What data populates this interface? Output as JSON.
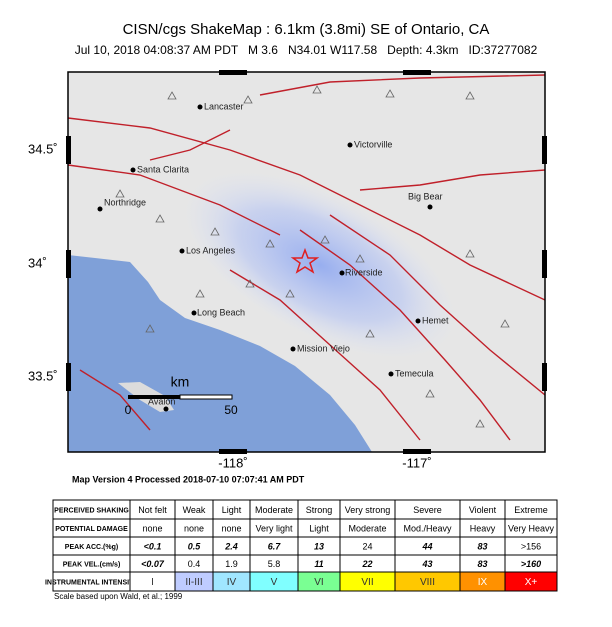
{
  "header": {
    "title": "CISN/cgs ShakeMap : 6.1km (3.8mi) SE of Ontario, CA",
    "subtitle": "Jul 10, 2018 04:08:37 AM PDT   M 3.6   N34.01 W117.58   Depth: 4.3km   ID:37277082"
  },
  "map": {
    "cities": [
      "Lancaster",
      "Victorville",
      "Santa Clarita",
      "Northridge",
      "Big Bear",
      "Los Angeles",
      "Riverside",
      "Long Beach",
      "Hemet",
      "Mission Viejo",
      "Temecula",
      "Avalon"
    ],
    "lat_ticks": [
      "34.5˚",
      "34˚",
      "33.5˚"
    ],
    "lon_ticks": [
      "-118˚",
      "-117˚"
    ],
    "scale": {
      "unit": "km",
      "labels": [
        "0",
        "50"
      ]
    }
  },
  "version_note": "Map Version 4 Processed 2018-07-10 07:07:41 AM PDT",
  "legend_table": {
    "rows": [
      [
        "PERCEIVED SHAKING",
        "Not felt",
        "Weak",
        "Light",
        "Moderate",
        "Strong",
        "Very strong",
        "Severe",
        "Violent",
        "Extreme"
      ],
      [
        "POTENTIAL DAMAGE",
        "none",
        "none",
        "none",
        "Very light",
        "Light",
        "Moderate",
        "Mod./Heavy",
        "Heavy",
        "Very Heavy"
      ],
      [
        "PEAK ACC.(%g)",
        "<0.1",
        "0.5",
        "2.4",
        "6.7",
        "13",
        "24",
        "44",
        "83",
        ">156"
      ],
      [
        "PEAK VEL.(cm/s)",
        "<0.07",
        "0.4",
        "1.9",
        "5.8",
        "11",
        "22",
        "43",
        "83",
        ">160"
      ],
      [
        "INSTRUMENTAL INTENSITY",
        "I",
        "II-III",
        "IV",
        "V",
        "VI",
        "VII",
        "VIII",
        "IX",
        "X+"
      ]
    ]
  },
  "footnote": "Scale based upon Wald, et al.; 1999"
}
